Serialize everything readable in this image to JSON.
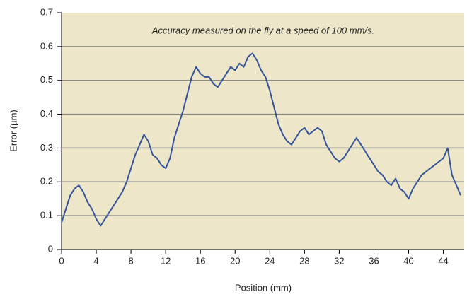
{
  "chart_data": {
    "type": "line",
    "annotation": "Accuracy measured on the fly at a speed of 100 mm/s.",
    "xlabel": "Position (mm)",
    "ylabel": "Error (µm)",
    "x": [
      0,
      0.5,
      1,
      1.5,
      2,
      2.5,
      3,
      3.5,
      4,
      4.5,
      5,
      5.5,
      6,
      6.5,
      7,
      7.5,
      8,
      8.5,
      9,
      9.5,
      10,
      10.5,
      11,
      11.5,
      12,
      12.5,
      13,
      13.5,
      14,
      14.5,
      15,
      15.5,
      16,
      16.5,
      17,
      17.5,
      18,
      18.5,
      19,
      19.5,
      20,
      20.5,
      21,
      21.5,
      22,
      22.5,
      23,
      23.5,
      24,
      24.5,
      25,
      25.5,
      26,
      26.5,
      27,
      27.5,
      28,
      28.5,
      29,
      29.5,
      30,
      30.5,
      31,
      31.5,
      32,
      32.5,
      33,
      33.5,
      34,
      34.5,
      35,
      35.5,
      36,
      36.5,
      37,
      37.5,
      38,
      38.5,
      39,
      39.5,
      40,
      40.5,
      41,
      41.5,
      42,
      42.5,
      43,
      43.5,
      44,
      44.5,
      45,
      45.5,
      46
    ],
    "values": [
      0.08,
      0.12,
      0.16,
      0.18,
      0.19,
      0.17,
      0.14,
      0.12,
      0.09,
      0.07,
      0.09,
      0.11,
      0.13,
      0.15,
      0.17,
      0.2,
      0.24,
      0.28,
      0.31,
      0.34,
      0.32,
      0.28,
      0.27,
      0.25,
      0.24,
      0.27,
      0.33,
      0.37,
      0.41,
      0.46,
      0.51,
      0.54,
      0.52,
      0.51,
      0.51,
      0.49,
      0.48,
      0.5,
      0.52,
      0.54,
      0.53,
      0.55,
      0.54,
      0.57,
      0.58,
      0.56,
      0.53,
      0.51,
      0.47,
      0.42,
      0.37,
      0.34,
      0.32,
      0.31,
      0.33,
      0.35,
      0.36,
      0.34,
      0.35,
      0.36,
      0.35,
      0.31,
      0.29,
      0.27,
      0.26,
      0.27,
      0.29,
      0.31,
      0.33,
      0.31,
      0.29,
      0.27,
      0.25,
      0.23,
      0.22,
      0.2,
      0.19,
      0.21,
      0.18,
      0.17,
      0.15,
      0.18,
      0.2,
      0.22,
      0.23,
      0.24,
      0.25,
      0.26,
      0.27,
      0.3,
      0.22,
      0.19,
      0.16
    ],
    "color": "#34549a",
    "background": "#ede6c8",
    "xlim": [
      0,
      46.4
    ],
    "ylim": [
      0,
      0.7
    ],
    "xticks": [
      0,
      4,
      8,
      12,
      16,
      20,
      24,
      28,
      32,
      36,
      40,
      44
    ],
    "yticks": [
      0,
      0.1,
      0.2,
      0.3,
      0.4,
      0.5,
      0.6,
      0.7
    ],
    "grid": true
  }
}
